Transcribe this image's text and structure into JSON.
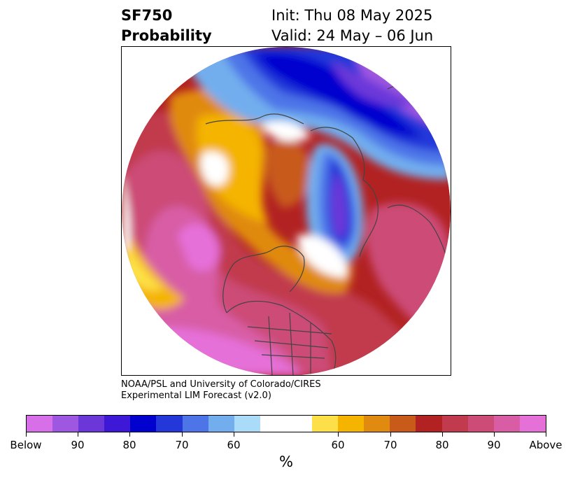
{
  "title": {
    "left_line1": "SF750",
    "left_line2": "Probability",
    "right_line1": "Init: Thu 08 May 2025",
    "right_line2": "Valid: 24 May – 06 Jun"
  },
  "credit": {
    "line1": "NOAA/PSL and University of Colorado/CIRES",
    "line2": "Experimental LIM Forecast (v2.0)"
  },
  "colorbar": {
    "unit": "%",
    "colors": [
      "#d76fe8",
      "#9e57e0",
      "#6c37d9",
      "#3d18d6",
      "#0000cf",
      "#2437d9",
      "#4d75e8",
      "#72aeee",
      "#aadcfa",
      "#ffffff",
      "#ffffff",
      "#fde047",
      "#f4b400",
      "#e08a10",
      "#c85a1a",
      "#b22222",
      "#c13a4e",
      "#cc4b77",
      "#d85da5",
      "#e570d8"
    ],
    "tick_labels": [
      "Below",
      "90",
      "80",
      "70",
      "60",
      "60",
      "70",
      "80",
      "90",
      "Above"
    ]
  },
  "map": {
    "colors": {
      "deep_purple": "#9e57e0",
      "violet": "#6c37d9",
      "blue": "#0000cf",
      "mid_blue": "#2437d9",
      "light_blue": "#4d75e8",
      "sky": "#72aeee",
      "pale_blue": "#aadcfa",
      "yellow": "#fde047",
      "gold": "#f4b400",
      "orange": "#e08a10",
      "dark_orange": "#c85a1a",
      "red": "#b22222",
      "crimson": "#c13a4e",
      "pink": "#cc4b77",
      "rose": "#d85da5",
      "magenta": "#e570d8",
      "coastline": "#444444"
    }
  }
}
